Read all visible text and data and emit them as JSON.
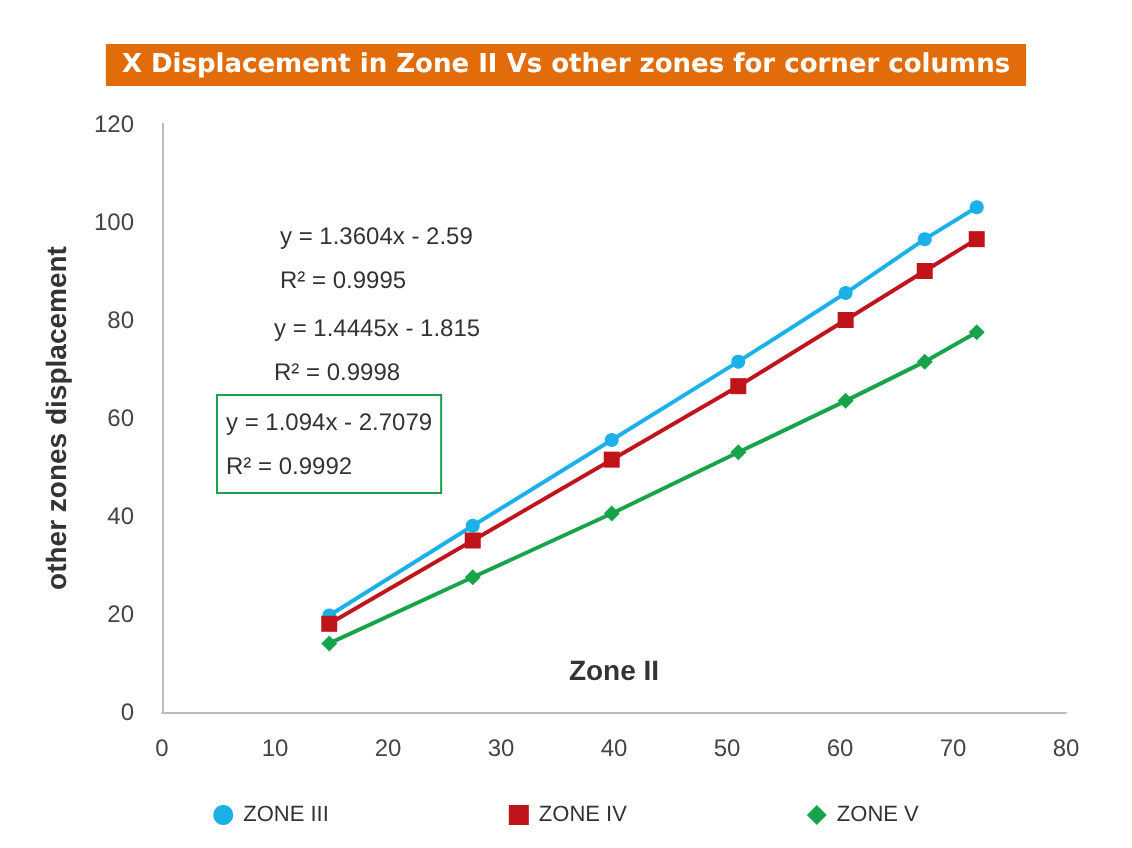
{
  "chart_data": {
    "type": "line",
    "title": "X Displacement in Zone II Vs other zones for corner columns",
    "xlabel": "Zone II",
    "ylabel": "other zones displacement",
    "x": [
      14.8,
      27.5,
      39.8,
      51,
      60.5,
      67.5,
      72.1
    ],
    "series": [
      {
        "name": "ZONE III",
        "color": "#1cb0e8",
        "marker": "circle",
        "values": [
          19.7,
          38,
          55.5,
          71.5,
          85.5,
          96.5,
          103
        ]
      },
      {
        "name": "ZONE IV",
        "color": "#c0141b",
        "marker": "square",
        "values": [
          18,
          35,
          51.5,
          66.5,
          80,
          90,
          96.5
        ]
      },
      {
        "name": "ZONE V",
        "color": "#16a34a",
        "marker": "diamond",
        "values": [
          14,
          27.5,
          40.5,
          53,
          63.5,
          71.5,
          77.5
        ]
      }
    ],
    "annotations": [
      "y = 1.3604x - 2.59\nR² = 0.9995",
      "y = 1.4445x - 1.815\nR² = 0.9998",
      "y = 1.094x - 2.7079\nR² = 0.9992"
    ],
    "xlim": [
      0,
      80
    ],
    "xticks": [
      0,
      10,
      20,
      30,
      40,
      50,
      60,
      70,
      80
    ],
    "ylim": [
      0,
      120
    ],
    "yticks": [
      0,
      20,
      40,
      60,
      80,
      100,
      120
    ],
    "grid": false,
    "legend": "bottom",
    "line_style": "solid"
  }
}
